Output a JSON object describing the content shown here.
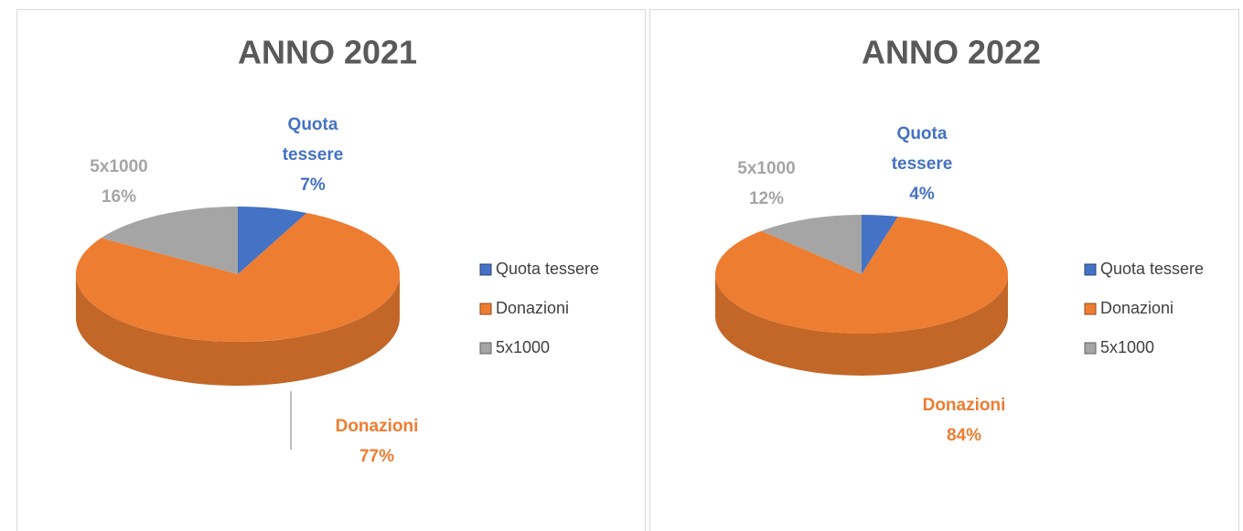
{
  "chart_data": [
    {
      "type": "pie",
      "title": "ANNO 2021",
      "categories": [
        "Quota tessere",
        "Donazioni",
        "5x1000"
      ],
      "values": [
        7,
        77,
        16
      ],
      "value_labels": [
        "7%",
        "77%",
        "16%"
      ],
      "colors": [
        "#4472c4",
        "#ed7d31",
        "#a5a5a5"
      ],
      "legend": "right"
    },
    {
      "type": "pie",
      "title": "ANNO 2022",
      "categories": [
        "Quota tessere",
        "Donazioni",
        "5x1000"
      ],
      "values": [
        4,
        84,
        12
      ],
      "value_labels": [
        "4%",
        "84%",
        "12%"
      ],
      "colors": [
        "#4472c4",
        "#ed7d31",
        "#a5a5a5"
      ],
      "legend": "right"
    }
  ]
}
